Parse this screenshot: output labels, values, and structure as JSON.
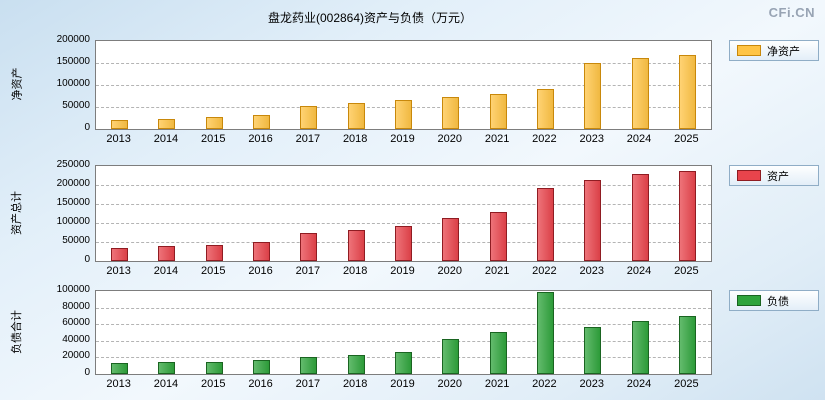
{
  "header": {
    "title": "盘龙药业(002864)资产与负债（万元）",
    "watermark": "CFi.CN"
  },
  "chart_data": [
    {
      "type": "bar",
      "title": "净资产",
      "ylabel": "净资产",
      "legend": "净资产",
      "color": "#FFC445",
      "border_color": "#C8880B",
      "categories": [
        "2013",
        "2014",
        "2015",
        "2016",
        "2017",
        "2018",
        "2019",
        "2020",
        "2021",
        "2022",
        "2023",
        "2024",
        "2025"
      ],
      "values": [
        20000,
        22000,
        27000,
        32000,
        52000,
        60000,
        65000,
        72000,
        80000,
        92000,
        150000,
        162000,
        168000
      ],
      "ylim": [
        0,
        200000
      ],
      "yticks": [
        0,
        50000,
        100000,
        150000,
        200000
      ],
      "grid": true,
      "legend_position": "right"
    },
    {
      "type": "bar",
      "title": "资产总计",
      "ylabel": "资产总计",
      "legend": "资产",
      "color": "#E8444C",
      "border_color": "#8F1C22",
      "categories": [
        "2013",
        "2014",
        "2015",
        "2016",
        "2017",
        "2018",
        "2019",
        "2020",
        "2021",
        "2022",
        "2023",
        "2024",
        "2025"
      ],
      "values": [
        33000,
        40000,
        42000,
        50000,
        73000,
        81000,
        91000,
        112000,
        130000,
        192000,
        212000,
        228000,
        238000
      ],
      "ylim": [
        0,
        250000
      ],
      "yticks": [
        0,
        50000,
        100000,
        150000,
        200000,
        250000
      ],
      "grid": true,
      "legend_position": "right"
    },
    {
      "type": "bar",
      "title": "负债合计",
      "ylabel": "负债合计",
      "legend": "负债",
      "color": "#2FA43C",
      "border_color": "#1A6421",
      "categories": [
        "2013",
        "2014",
        "2015",
        "2016",
        "2017",
        "2018",
        "2019",
        "2020",
        "2021",
        "2022",
        "2023",
        "2024",
        "2025"
      ],
      "values": [
        13000,
        15000,
        14000,
        17000,
        21000,
        23000,
        27000,
        42000,
        51000,
        99000,
        57000,
        64000,
        70000
      ],
      "ylim": [
        0,
        100000
      ],
      "yticks": [
        0,
        20000,
        40000,
        60000,
        80000,
        100000
      ],
      "grid": true,
      "legend_position": "right"
    }
  ]
}
